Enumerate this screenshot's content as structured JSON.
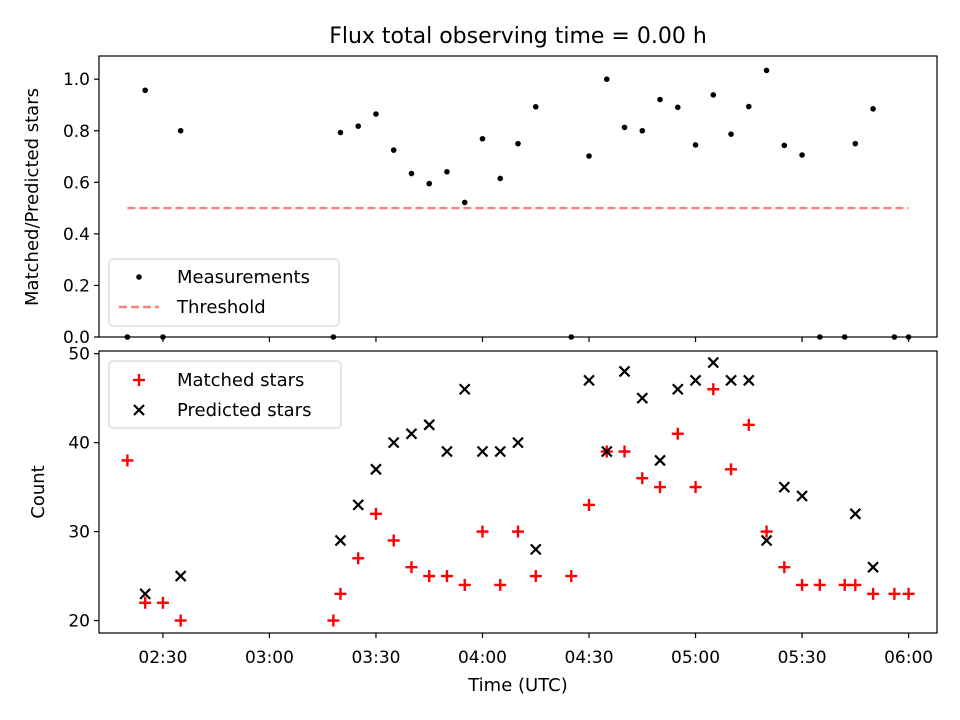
{
  "chart_data": [
    {
      "type": "scatter",
      "title": "Flux total observing time = 0.00 h",
      "xlabel": "",
      "ylabel": "Matched/Predicted stars",
      "xlim": [
        "02:12",
        "06:08"
      ],
      "ylim": [
        0.0,
        1.09
      ],
      "y_ticks": [
        0.0,
        0.2,
        0.4,
        0.6,
        0.8,
        1.0
      ],
      "y_tick_labels": [
        "0.0",
        "0.2",
        "0.4",
        "0.6",
        "0.8",
        "1.0"
      ],
      "legend_position": "bottom-left",
      "grid": false,
      "series": [
        {
          "name": "Measurements",
          "marker": "dot",
          "color": "#000000",
          "points": [
            [
              "02:20",
              0.0
            ],
            [
              "02:25",
              0.957
            ],
            [
              "02:30",
              0.0
            ],
            [
              "02:35",
              0.8
            ],
            [
              "03:18",
              0.0
            ],
            [
              "03:20",
              0.793
            ],
            [
              "03:25",
              0.818
            ],
            [
              "03:30",
              0.865
            ],
            [
              "03:35",
              0.725
            ],
            [
              "03:40",
              0.634
            ],
            [
              "03:45",
              0.595
            ],
            [
              "03:50",
              0.641
            ],
            [
              "03:55",
              0.522
            ],
            [
              "04:00",
              0.769
            ],
            [
              "04:05",
              0.615
            ],
            [
              "04:10",
              0.75
            ],
            [
              "04:15",
              0.893
            ],
            [
              "04:25",
              0.0
            ],
            [
              "04:30",
              0.702
            ],
            [
              "04:35",
              1.0
            ],
            [
              "04:40",
              0.813
            ],
            [
              "04:45",
              0.8
            ],
            [
              "04:50",
              0.921
            ],
            [
              "04:55",
              0.891
            ],
            [
              "05:00",
              0.745
            ],
            [
              "05:05",
              0.939
            ],
            [
              "05:10",
              0.787
            ],
            [
              "05:15",
              0.894
            ],
            [
              "05:20",
              1.034
            ],
            [
              "05:25",
              0.743
            ],
            [
              "05:30",
              0.706
            ],
            [
              "05:35",
              0.0
            ],
            [
              "05:42",
              0.0
            ],
            [
              "05:45",
              0.75
            ],
            [
              "05:50",
              0.885
            ],
            [
              "05:56",
              0.0
            ],
            [
              "06:00",
              0.0
            ]
          ]
        },
        {
          "name": "Threshold",
          "marker": "dashed-line",
          "color": "#ff7f7f",
          "x": [
            "02:20",
            "06:00"
          ],
          "y": [
            0.5,
            0.5
          ]
        }
      ]
    },
    {
      "type": "scatter",
      "title": "",
      "xlabel": "Time (UTC)",
      "ylabel": "Count",
      "xlim": [
        "02:12",
        "06:08"
      ],
      "ylim": [
        18.6,
        50.3
      ],
      "y_ticks": [
        20,
        30,
        40,
        50
      ],
      "y_tick_labels": [
        "20",
        "30",
        "40",
        "50"
      ],
      "x_ticks": [
        "02:30",
        "03:00",
        "03:30",
        "04:00",
        "04:30",
        "05:00",
        "05:30",
        "06:00"
      ],
      "legend_position": "top-left",
      "grid": false,
      "series": [
        {
          "name": "Matched stars",
          "marker": "plus",
          "color": "#ff0000",
          "points": [
            [
              "02:20",
              38
            ],
            [
              "02:25",
              22
            ],
            [
              "02:30",
              22
            ],
            [
              "02:35",
              20
            ],
            [
              "03:18",
              20
            ],
            [
              "03:20",
              23
            ],
            [
              "03:25",
              27
            ],
            [
              "03:30",
              32
            ],
            [
              "03:35",
              29
            ],
            [
              "03:40",
              26
            ],
            [
              "03:45",
              25
            ],
            [
              "03:50",
              25
            ],
            [
              "03:55",
              24
            ],
            [
              "04:00",
              30
            ],
            [
              "04:05",
              24
            ],
            [
              "04:10",
              30
            ],
            [
              "04:15",
              25
            ],
            [
              "04:25",
              25
            ],
            [
              "04:30",
              33
            ],
            [
              "04:35",
              39
            ],
            [
              "04:40",
              39
            ],
            [
              "04:45",
              36
            ],
            [
              "04:50",
              35
            ],
            [
              "04:55",
              41
            ],
            [
              "05:00",
              35
            ],
            [
              "05:05",
              46
            ],
            [
              "05:10",
              37
            ],
            [
              "05:15",
              42
            ],
            [
              "05:20",
              30
            ],
            [
              "05:25",
              26
            ],
            [
              "05:30",
              24
            ],
            [
              "05:35",
              24
            ],
            [
              "05:42",
              24
            ],
            [
              "05:45",
              24
            ],
            [
              "05:50",
              23
            ],
            [
              "05:56",
              23
            ],
            [
              "06:00",
              23
            ]
          ]
        },
        {
          "name": "Predicted stars",
          "marker": "x",
          "color": "#000000",
          "points": [
            [
              "02:25",
              23
            ],
            [
              "02:35",
              25
            ],
            [
              "03:20",
              29
            ],
            [
              "03:25",
              33
            ],
            [
              "03:30",
              37
            ],
            [
              "03:35",
              40
            ],
            [
              "03:40",
              41
            ],
            [
              "03:45",
              42
            ],
            [
              "03:50",
              39
            ],
            [
              "03:55",
              46
            ],
            [
              "04:00",
              39
            ],
            [
              "04:05",
              39
            ],
            [
              "04:10",
              40
            ],
            [
              "04:15",
              28
            ],
            [
              "04:30",
              47
            ],
            [
              "04:35",
              39
            ],
            [
              "04:40",
              48
            ],
            [
              "04:45",
              45
            ],
            [
              "04:50",
              38
            ],
            [
              "04:55",
              46
            ],
            [
              "05:00",
              47
            ],
            [
              "05:05",
              49
            ],
            [
              "05:10",
              47
            ],
            [
              "05:15",
              47
            ],
            [
              "05:20",
              29
            ],
            [
              "05:25",
              35
            ],
            [
              "05:30",
              34
            ],
            [
              "05:45",
              32
            ],
            [
              "05:50",
              26
            ]
          ]
        }
      ]
    }
  ]
}
